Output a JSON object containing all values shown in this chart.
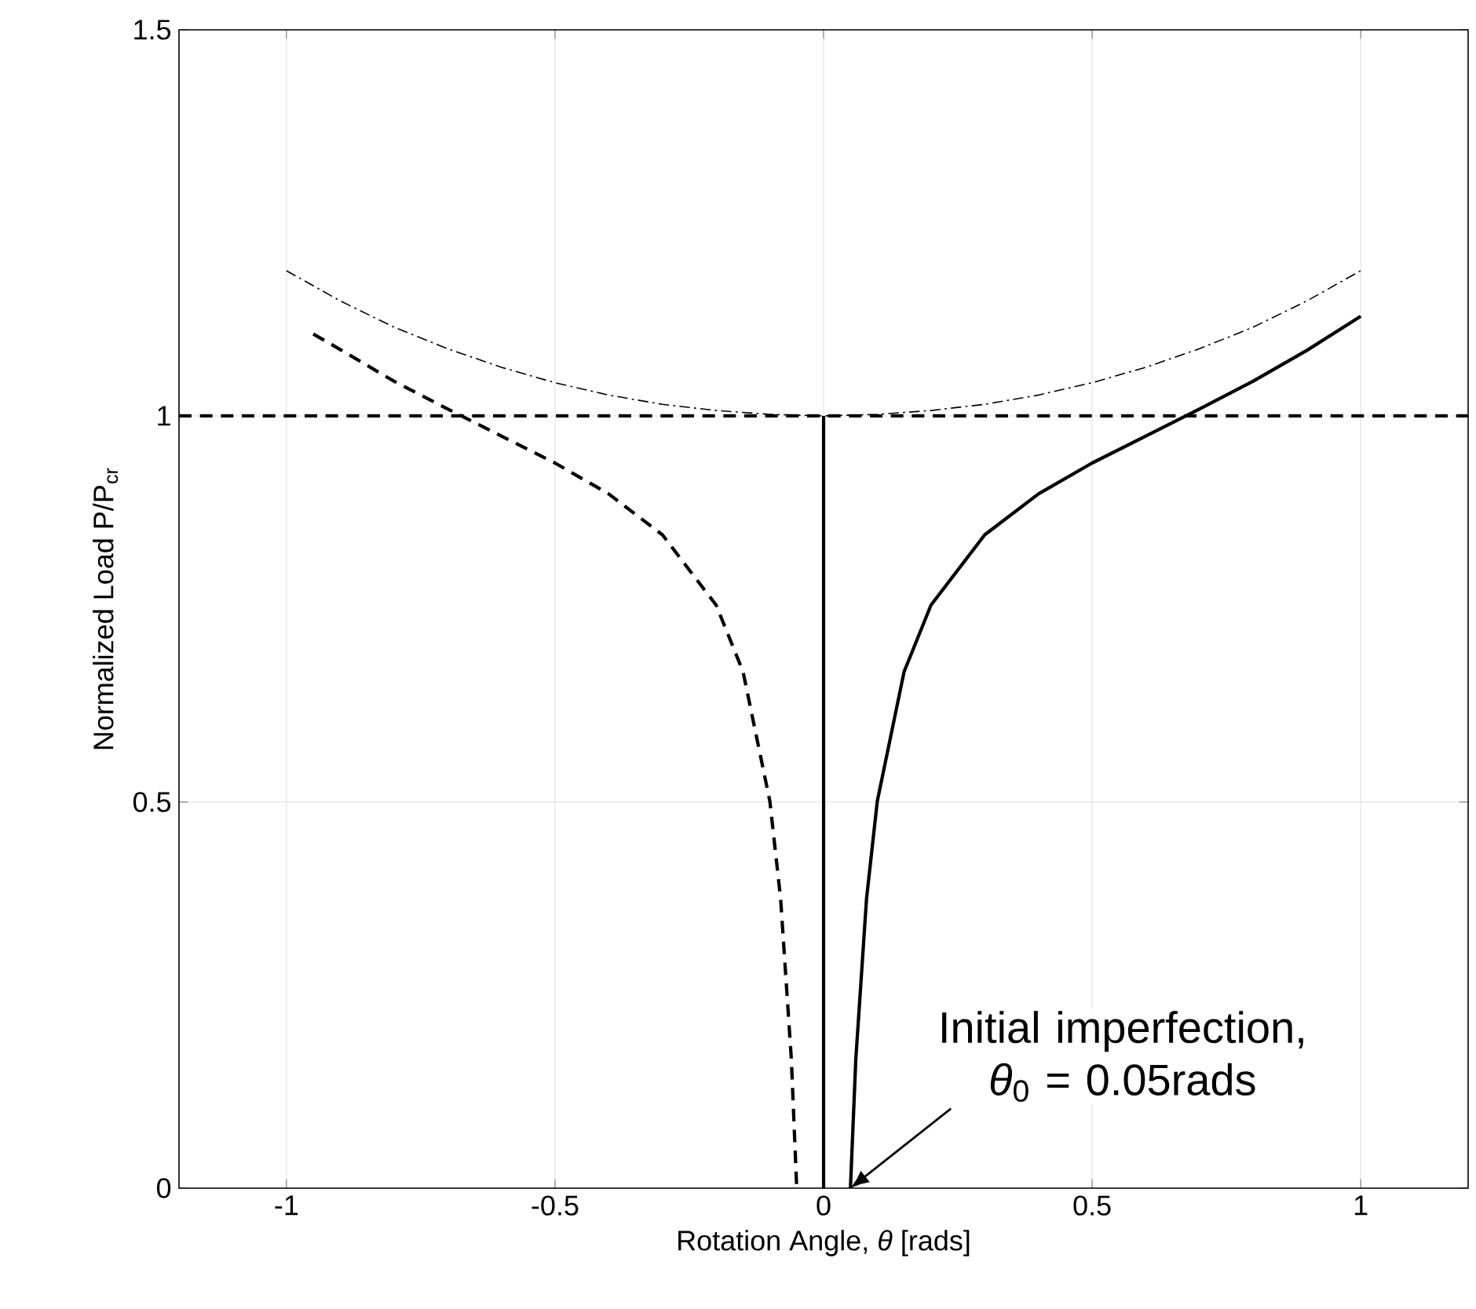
{
  "chart_data": {
    "type": "line",
    "xlabel": "Rotation Angle, *θ* [rads]",
    "ylabel": "Normalized Load P/P$_{cr}$",
    "xlim": [
      -1.2,
      1.2
    ],
    "ylim": [
      0,
      1.5
    ],
    "xticks": [
      -1,
      -0.5,
      0,
      0.5,
      1
    ],
    "yticks": [
      0,
      0.5,
      1,
      1.5
    ],
    "grid": true,
    "series": [
      {
        "color": "#000000",
        "line_style": "dashdot",
        "x": [
          -1,
          -0.9,
          -0.8,
          -0.7,
          -0.6,
          -0.5,
          -0.4,
          -0.3,
          -0.2,
          -0.1,
          0,
          0.1,
          0.2,
          0.3,
          0.4,
          0.5,
          0.6,
          0.7,
          0.8,
          0.9,
          1
        ],
        "values": [
          1.188,
          1.149,
          1.115,
          1.087,
          1.063,
          1.043,
          1.027,
          1.015,
          1.007,
          1.002,
          1,
          1.002,
          1.007,
          1.015,
          1.027,
          1.043,
          1.063,
          1.087,
          1.115,
          1.149,
          1.188
        ]
      },
      {
        "color": "#000000",
        "line_style": "solid",
        "x": [
          0,
          0
        ],
        "values": [
          0,
          1
        ]
      },
      {
        "color": "#000000",
        "line_style": "solid",
        "x": [
          0.05,
          0.06,
          0.08,
          0.1,
          0.15,
          0.2,
          0.3,
          0.4,
          0.5,
          0.6,
          0.7,
          0.8,
          0.9,
          1
        ],
        "values": [
          0,
          0.167,
          0.375,
          0.501,
          0.669,
          0.755,
          0.846,
          0.899,
          0.939,
          0.974,
          1.009,
          1.045,
          1.085,
          1.129
        ]
      },
      {
        "color": "#000000",
        "line_style": "dashed",
        "x": [
          -0.95,
          -0.9,
          -0.8,
          -0.7,
          -0.6,
          -0.5,
          -0.4,
          -0.3,
          -0.2,
          -0.15,
          -0.1,
          -0.08,
          -0.06,
          -0.05
        ],
        "values": [
          1.106,
          1.086,
          1.045,
          1.009,
          0.974,
          0.939,
          0.899,
          0.846,
          0.755,
          0.669,
          0.501,
          0.375,
          0.167,
          0
        ]
      }
    ],
    "ref_lines": [
      {
        "axis": "y",
        "value": 1,
        "color": "#000000",
        "line_style": "dashed"
      }
    ],
    "annotations": [
      {
        "text": "Initial imperfection, *θ*$_{0}$ = 0.05rads",
        "x": 0.05,
        "y": 0
      }
    ]
  }
}
